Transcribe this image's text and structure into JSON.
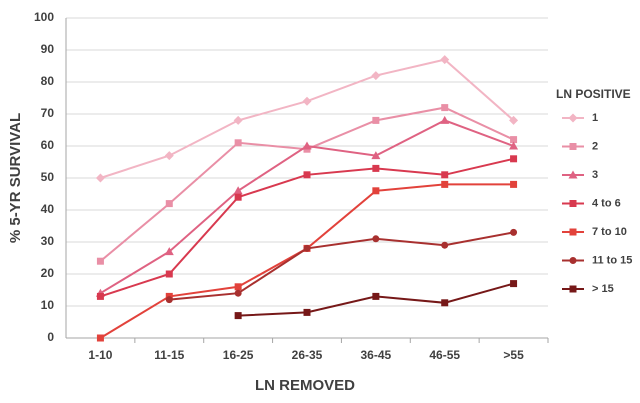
{
  "chart_data": {
    "type": "line",
    "x_label": "LN REMOVED",
    "y_label": "% 5-YR SURVIVAL",
    "legend_title": "LN POSITIVE",
    "categories": [
      "1-10",
      "11-15",
      "16-25",
      "26-35",
      "36-45",
      "46-55",
      ">55"
    ],
    "ylim": [
      0,
      100
    ],
    "yticks": [
      0,
      10,
      20,
      30,
      40,
      50,
      60,
      70,
      80,
      90,
      100
    ],
    "grid": true,
    "legend": "right",
    "series": [
      {
        "name": "1",
        "color": "#f2b5c4",
        "marker": "diamond",
        "values": [
          50,
          57,
          68,
          74,
          82,
          87,
          68
        ]
      },
      {
        "name": "2",
        "color": "#e98fa6",
        "marker": "square",
        "values": [
          24,
          42,
          61,
          59,
          68,
          72,
          62
        ]
      },
      {
        "name": "3",
        "color": "#df6282",
        "marker": "triangle",
        "values": [
          14,
          27,
          46,
          60,
          57,
          68,
          60
        ]
      },
      {
        "name": "4 to 6",
        "color": "#d8394f",
        "marker": "square",
        "values": [
          13,
          20,
          44,
          51,
          53,
          51,
          56
        ]
      },
      {
        "name": "7 to 10",
        "color": "#e2423b",
        "marker": "square",
        "values": [
          0,
          13,
          16,
          28,
          46,
          48,
          48
        ]
      },
      {
        "name": "11 to 15",
        "color": "#a8302f",
        "marker": "circle",
        "values": [
          null,
          12,
          14,
          28,
          31,
          29,
          33
        ]
      },
      {
        "name": ">  15",
        "color": "#761818",
        "marker": "square",
        "values": [
          null,
          null,
          7,
          8,
          13,
          11,
          17
        ]
      }
    ]
  }
}
